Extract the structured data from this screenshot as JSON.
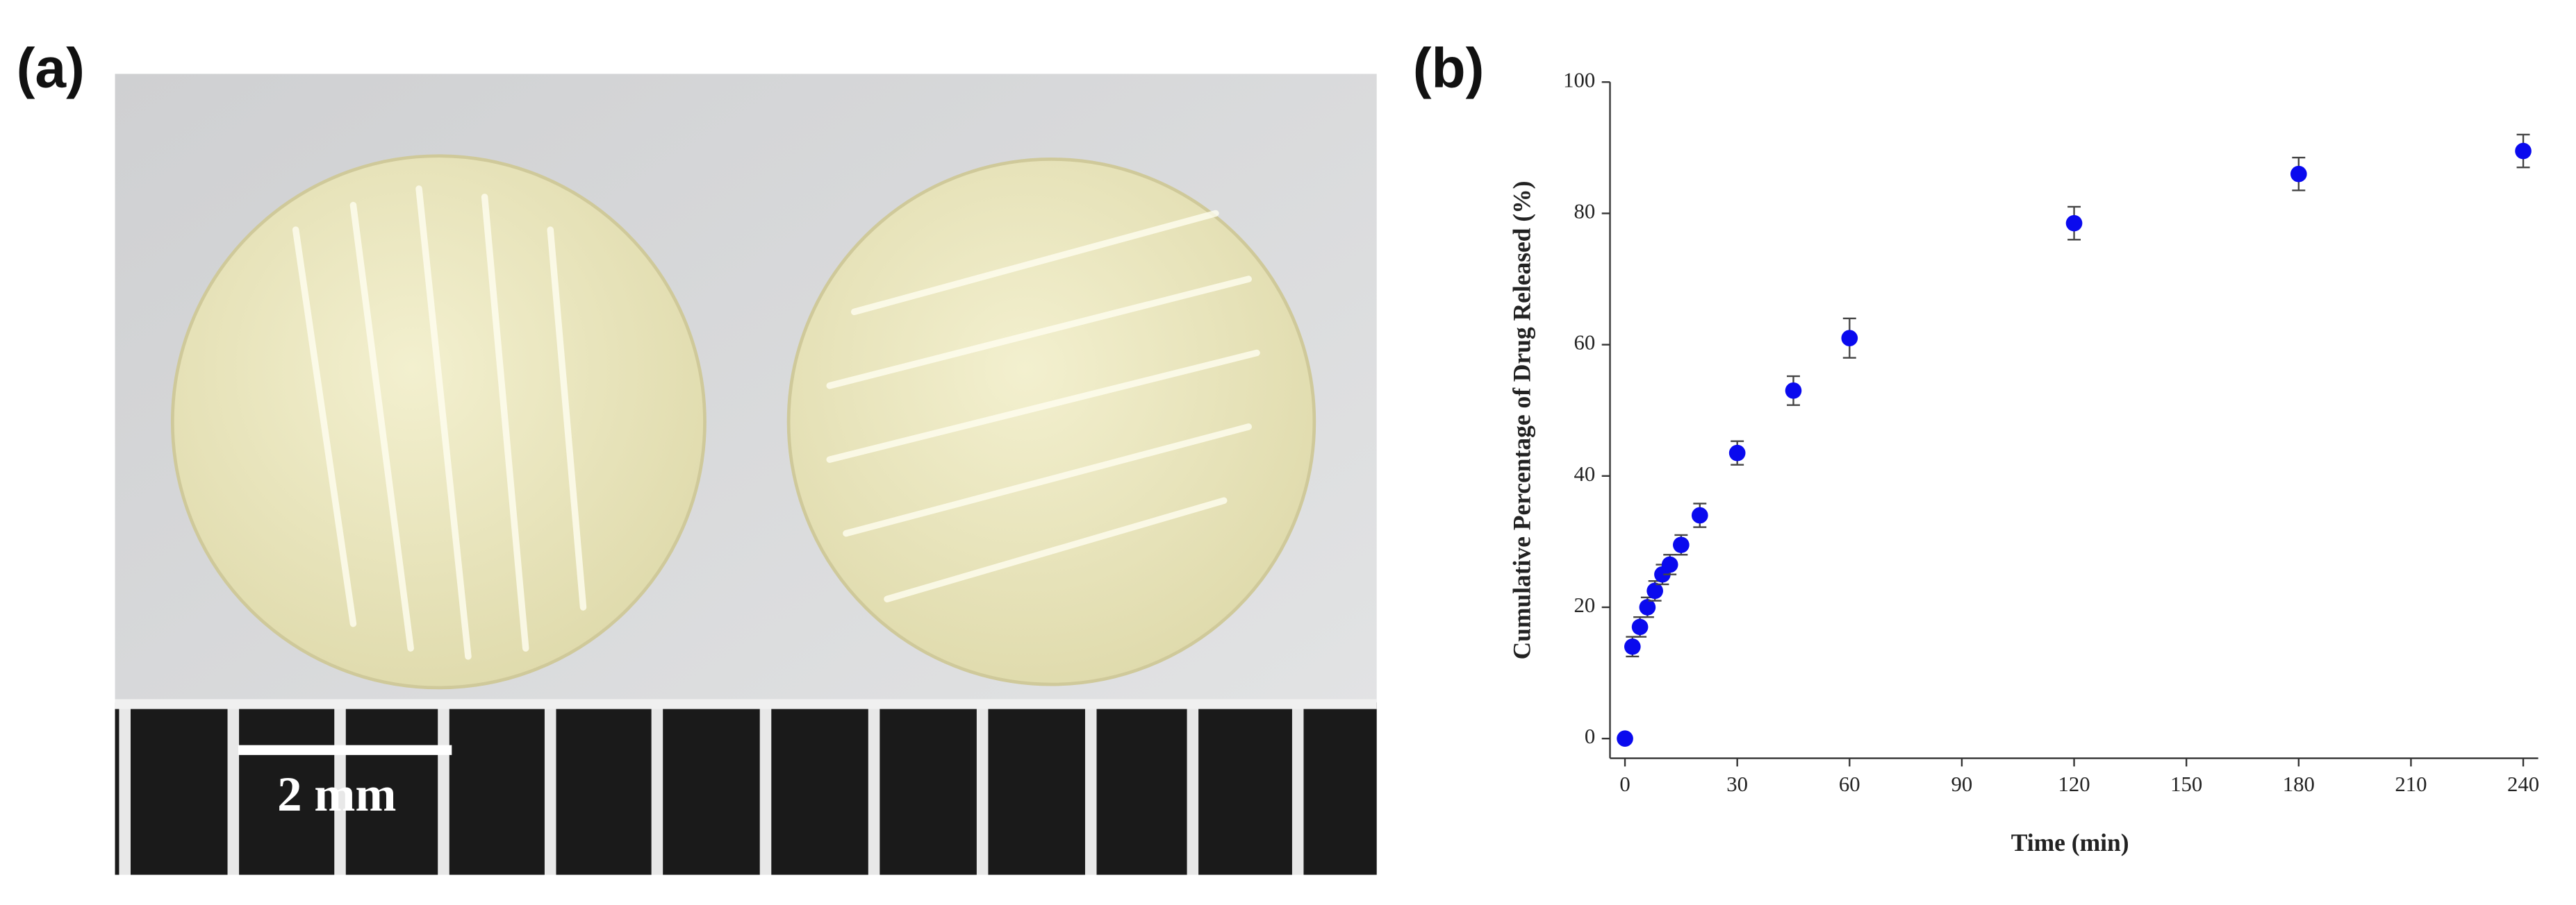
{
  "figure": {
    "panel_a_label": "(a)",
    "scale_bar_label": "2 mm"
  },
  "chart_data": {
    "type": "scatter",
    "panel_label": "(b)",
    "x_label": "Time (min)",
    "y_label": "Cumulative Percentage of Drug Released (%)",
    "x": [
      0,
      2,
      4,
      6,
      8,
      10,
      12,
      15,
      20,
      30,
      45,
      60,
      120,
      180,
      240
    ],
    "series": [
      {
        "color": "#0a0aee",
        "values": [
          0,
          14,
          17,
          20,
          22.5,
          25,
          26.5,
          29.5,
          34,
          43.5,
          53,
          61,
          78.5,
          86,
          89.5
        ],
        "errors": [
          0.5,
          1.5,
          1.5,
          1.5,
          1.5,
          1.5,
          1.5,
          1.5,
          1.8,
          1.8,
          2.2,
          3,
          2.5,
          2.5,
          2.5
        ]
      }
    ],
    "xlim": [
      -4,
      244
    ],
    "ylim": [
      -3,
      100
    ],
    "xticks": [
      0,
      30,
      60,
      90,
      120,
      150,
      180,
      210,
      240
    ],
    "yticks": [
      0,
      20,
      40,
      60,
      80,
      100
    ],
    "grid": false
  }
}
